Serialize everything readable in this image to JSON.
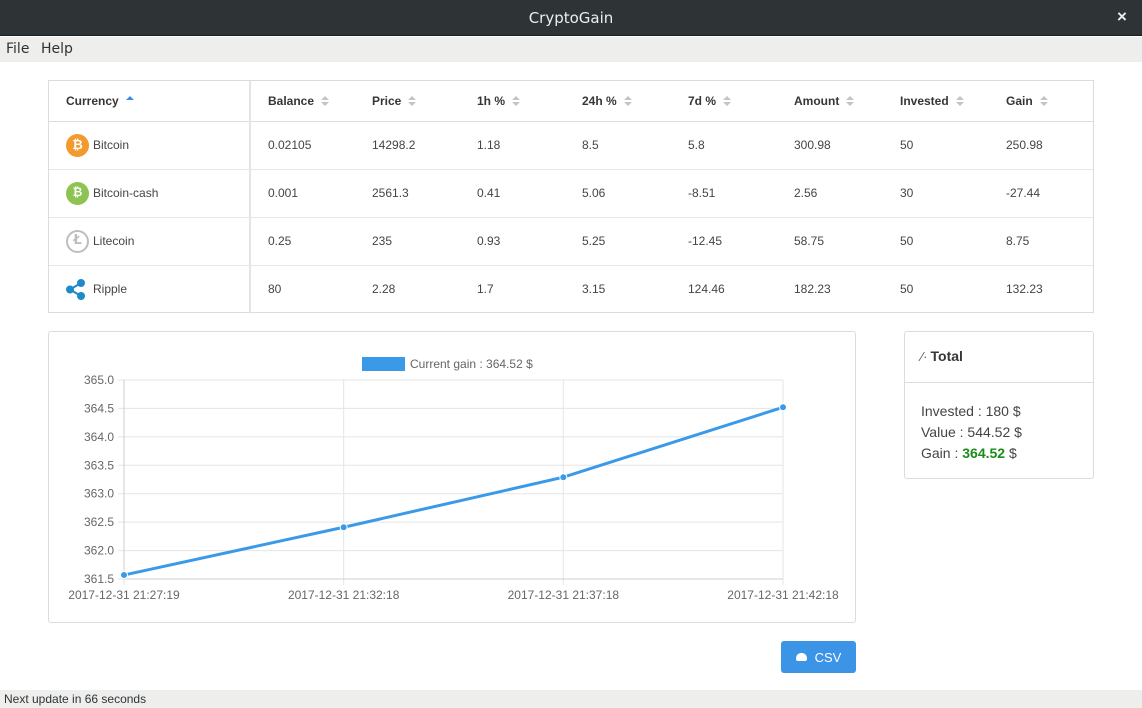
{
  "window": {
    "title": "CryptoGain",
    "close_glyph": "×"
  },
  "menu": [
    "File",
    "Help"
  ],
  "table": {
    "headers": [
      "Currency",
      "Balance",
      "Price",
      "1h %",
      "24h %",
      "7d %",
      "Amount",
      "Invested",
      "Gain"
    ],
    "rows": [
      {
        "icon": "bitcoin-icon",
        "currency": "Bitcoin",
        "balance": "0.02105",
        "price": "14298.2",
        "h1": "1.18",
        "h24": "8.5",
        "d7": "5.8",
        "amount": "300.98",
        "invested": "50",
        "gain": "250.98"
      },
      {
        "icon": "bitcoin-cash-icon",
        "currency": "Bitcoin-cash",
        "balance": "0.001",
        "price": "2561.3",
        "h1": "0.41",
        "h24": "5.06",
        "d7": "-8.51",
        "amount": "2.56",
        "invested": "30",
        "gain": "-27.44"
      },
      {
        "icon": "litecoin-icon",
        "currency": "Litecoin",
        "balance": "0.25",
        "price": "235",
        "h1": "0.93",
        "h24": "5.25",
        "d7": "-12.45",
        "amount": "58.75",
        "invested": "50",
        "gain": "8.75"
      },
      {
        "icon": "ripple-icon",
        "currency": "Ripple",
        "balance": "80",
        "price": "2.28",
        "h1": "1.7",
        "h24": "3.15",
        "d7": "124.46",
        "amount": "182.23",
        "invested": "50",
        "gain": "132.23"
      }
    ]
  },
  "chart_data": {
    "type": "line",
    "title": "",
    "xlabel": "",
    "ylabel": "",
    "x": [
      "2017-12-31 21:27:19",
      "2017-12-31 21:32:18",
      "2017-12-31 21:37:18",
      "2017-12-31 21:42:18"
    ],
    "series": [
      {
        "name": "Current gain : 364.52 $",
        "values": [
          361.57,
          362.41,
          363.29,
          364.52
        ]
      }
    ],
    "ylim": [
      361.5,
      365.0
    ],
    "yticks": [
      "365.0",
      "364.5",
      "364.0",
      "363.5",
      "363.0",
      "362.5",
      "362.0",
      "361.5"
    ],
    "grid": true,
    "legend": "top",
    "color": "#3b9ae8"
  },
  "total": {
    "title": "Total",
    "icon": "pulse-icon",
    "invested_label": "Invested : 180 $",
    "value_label": "Value : 544.52 $",
    "gain_prefix": "Gain : ",
    "gain_value": "364.52",
    "gain_suffix": " $",
    "gain_color": "#1e8a1c"
  },
  "csv_button": {
    "label": "CSV",
    "icon": "cloud-download-icon"
  },
  "status": "Next update in 66 seconds"
}
